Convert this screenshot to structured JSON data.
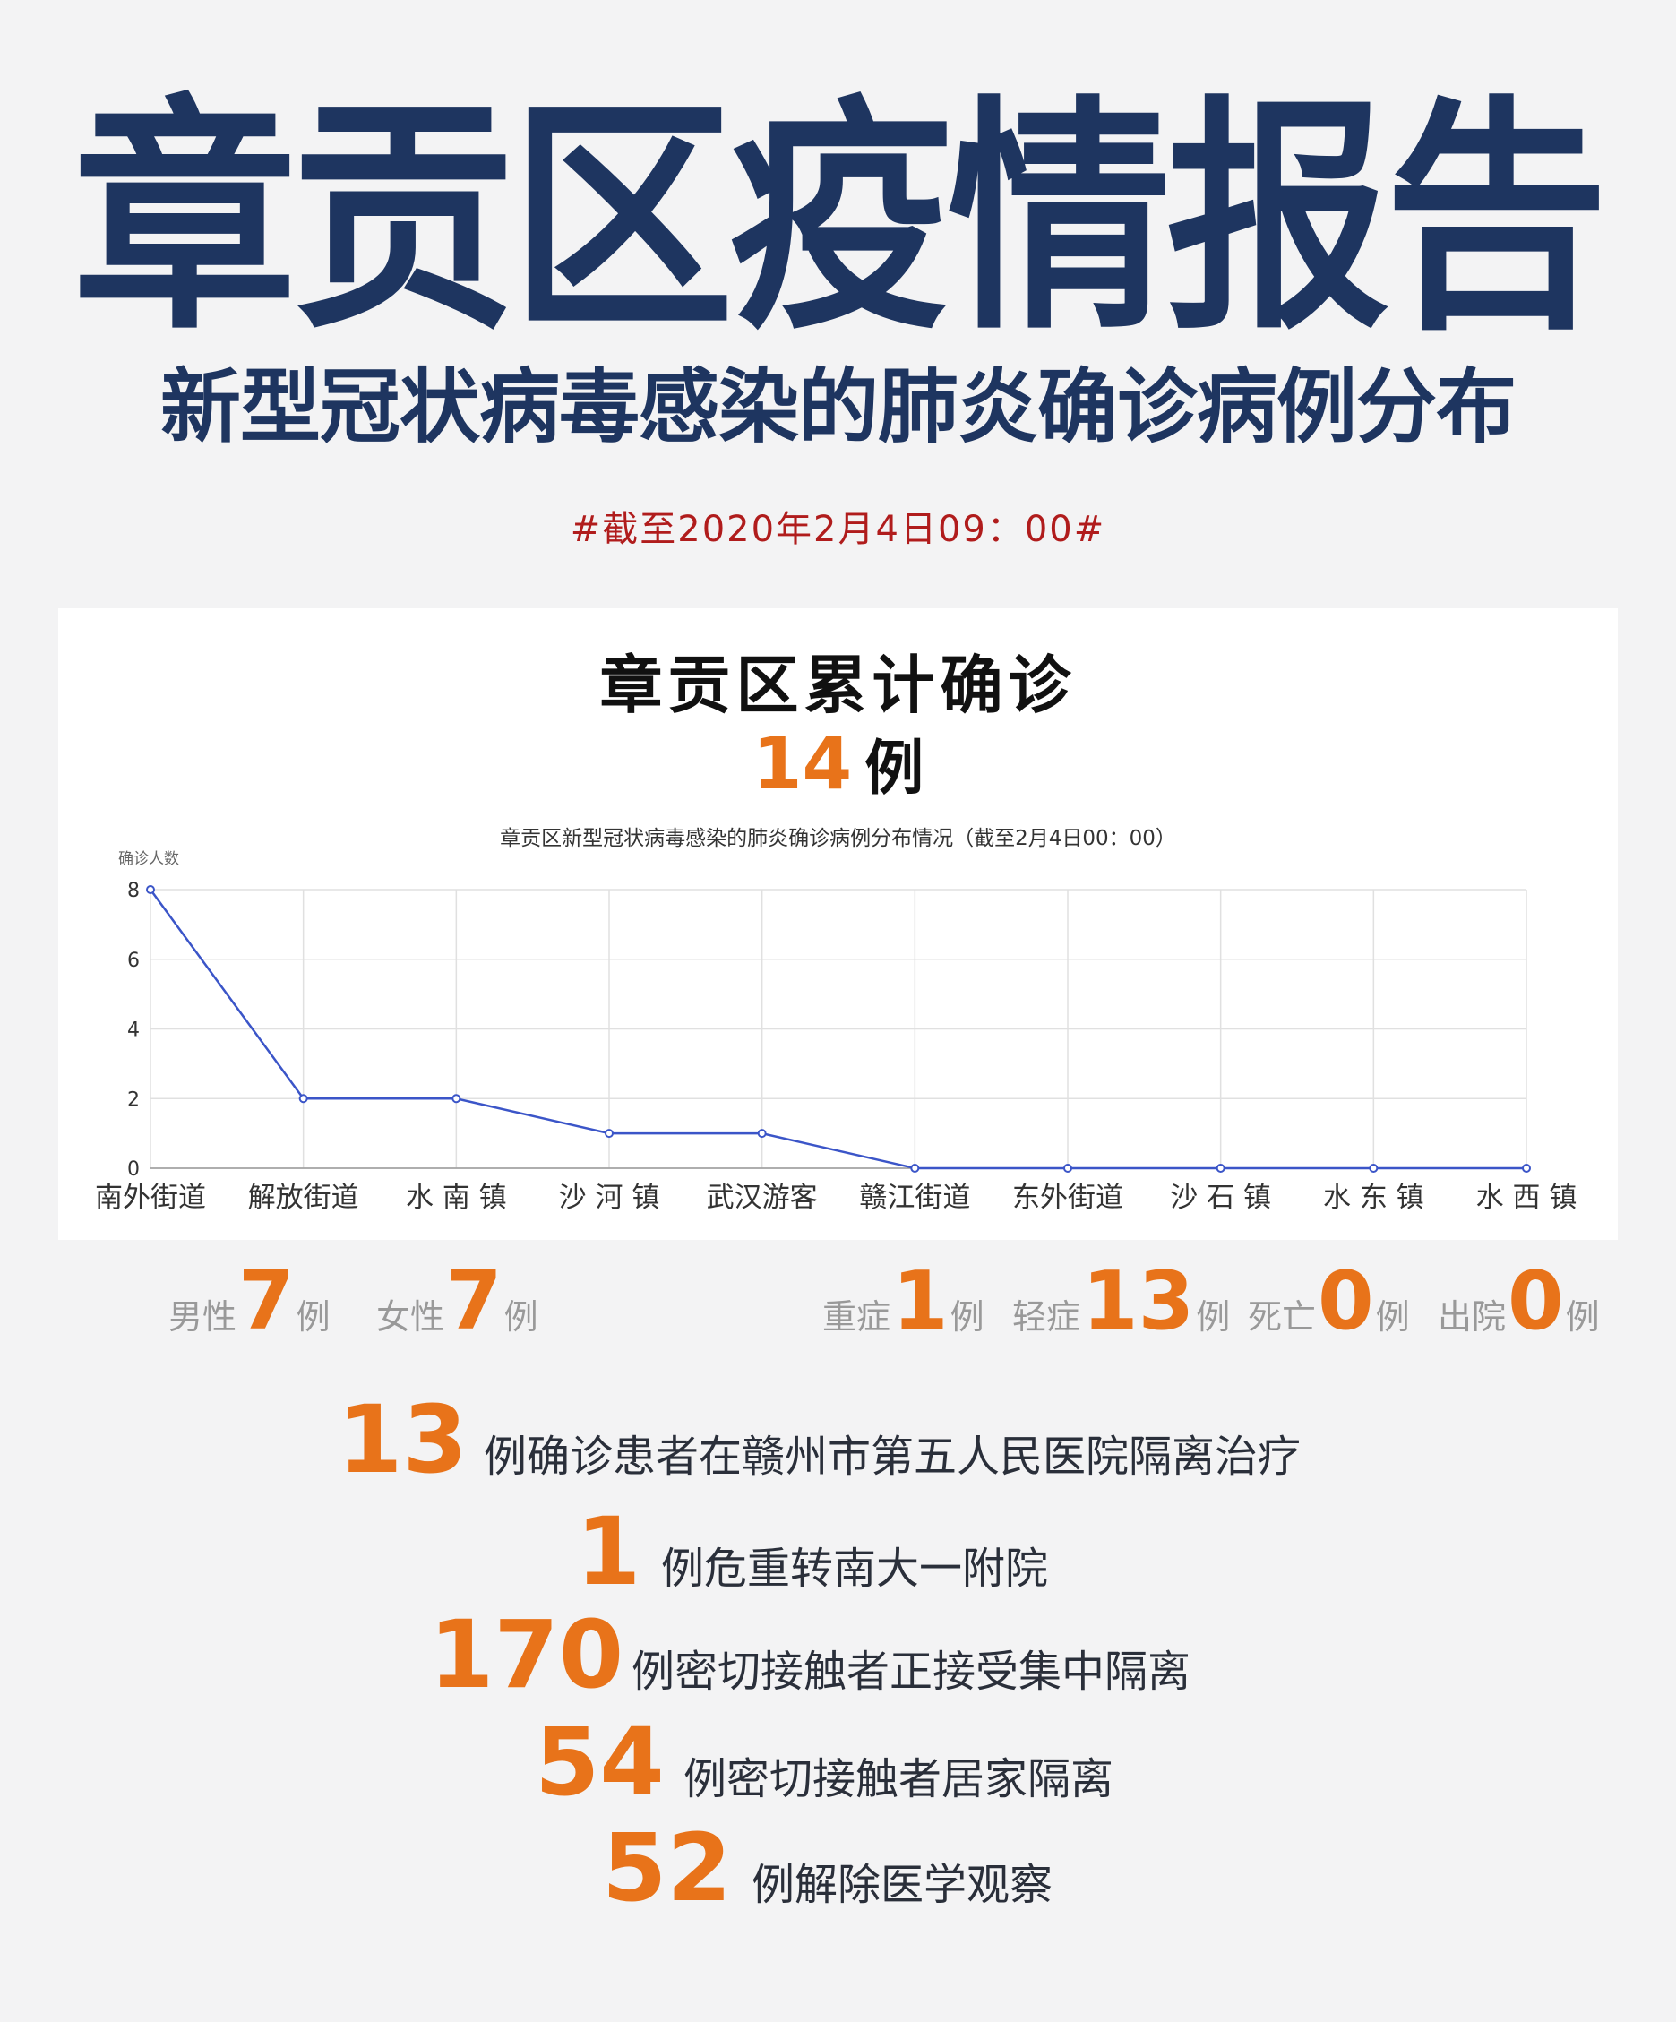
{
  "header": {
    "title": "章贡区疫情报告",
    "subtitle": "新型冠状病毒感染的肺炎确诊病例分布",
    "date": "#截至2020年2月4日09：00#"
  },
  "card": {
    "title": "章贡区累计确诊",
    "total": "14",
    "unit": "例"
  },
  "chart_data": {
    "type": "line",
    "title": "章贡区新型冠状病毒感染的肺炎确诊病例分布情况（截至2月4日00：00）",
    "ylabel": "确诊人数",
    "xlabel": "",
    "categories": [
      "南外街道",
      "解放街道",
      "水 南 镇",
      "沙 河 镇",
      "武汉游客",
      "赣江街道",
      "东外街道",
      "沙 石 镇",
      "水 东 镇",
      "水 西 镇"
    ],
    "values": [
      8,
      2,
      2,
      1,
      1,
      0,
      0,
      0,
      0,
      0
    ],
    "ylim": [
      0,
      8
    ],
    "yticks": [
      "0",
      "2",
      "4",
      "6",
      "8"
    ],
    "grid": true,
    "color": "#3b55c8"
  },
  "stats": [
    {
      "label": "男性",
      "value": "7",
      "unit": "例"
    },
    {
      "label": "女性",
      "value": "7",
      "unit": "例"
    },
    {
      "label": "重症",
      "value": "1",
      "unit": "例"
    },
    {
      "label": "轻症",
      "value": "13",
      "unit": "例"
    },
    {
      "label": "死亡",
      "value": "0",
      "unit": "例"
    },
    {
      "label": "出院",
      "value": "0",
      "unit": "例"
    }
  ],
  "details": [
    {
      "value": "13",
      "text": "例确诊患者在赣州市第五人民医院隔离治疗"
    },
    {
      "value": "1",
      "text": "例危重转南大一附院"
    },
    {
      "value": "170",
      "text": "例密切接触者正接受集中隔离"
    },
    {
      "value": "54",
      "text": "例密切接触者居家隔离"
    },
    {
      "value": "52",
      "text": "例解除医学观察"
    }
  ],
  "colors": {
    "title": "#1e3560",
    "accent": "#e8731a",
    "date": "#b01c1c",
    "background": "#f3f3f4"
  }
}
